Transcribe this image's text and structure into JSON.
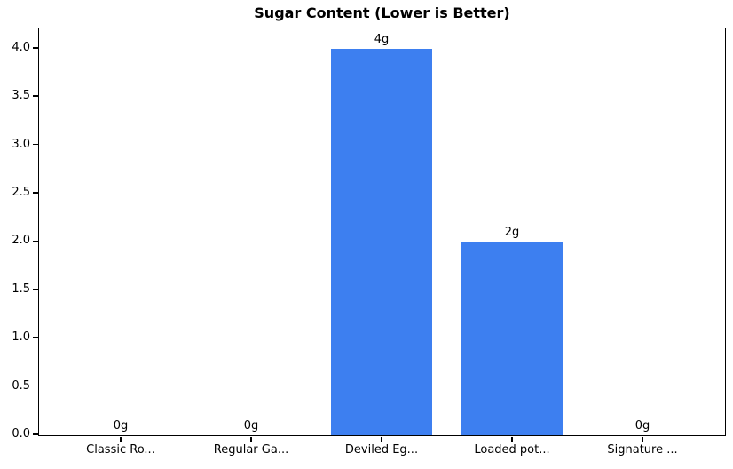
{
  "chart_data": {
    "type": "bar",
    "title": "Sugar Content (Lower is Better)",
    "categories": [
      "Classic Ro...",
      "Regular Ga...",
      "Deviled Eg...",
      "Loaded pot...",
      "Signature ..."
    ],
    "values": [
      0,
      0,
      4,
      2,
      0
    ],
    "bar_labels": [
      "0g",
      "0g",
      "4g",
      "2g",
      "0g"
    ],
    "xlabel": "",
    "ylabel": "",
    "ylim": [
      0,
      4.2
    ],
    "yticks": [
      0.0,
      0.5,
      1.0,
      1.5,
      2.0,
      2.5,
      3.0,
      3.5,
      4.0
    ],
    "ytick_labels": [
      "0.0",
      "0.5",
      "1.0",
      "1.5",
      "2.0",
      "2.5",
      "3.0",
      "3.5",
      "4.0"
    ],
    "grid": false,
    "legend": null,
    "colors": {
      "bar": "#3d7ff0",
      "text": "#000000",
      "spine": "#000000",
      "background": "#ffffff"
    }
  }
}
